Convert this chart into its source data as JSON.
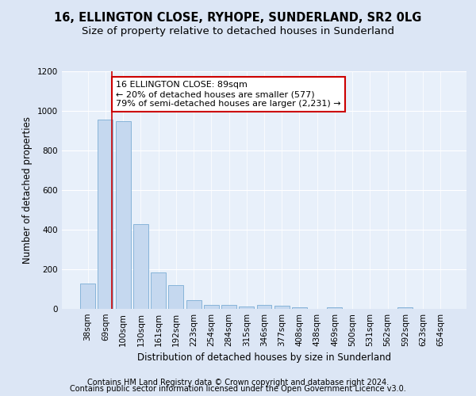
{
  "title1": "16, ELLINGTON CLOSE, RYHOPE, SUNDERLAND, SR2 0LG",
  "title2": "Size of property relative to detached houses in Sunderland",
  "xlabel": "Distribution of detached houses by size in Sunderland",
  "ylabel": "Number of detached properties",
  "bar_labels": [
    "38sqm",
    "69sqm",
    "100sqm",
    "130sqm",
    "161sqm",
    "192sqm",
    "223sqm",
    "254sqm",
    "284sqm",
    "315sqm",
    "346sqm",
    "377sqm",
    "408sqm",
    "438sqm",
    "469sqm",
    "500sqm",
    "531sqm",
    "562sqm",
    "592sqm",
    "623sqm",
    "654sqm"
  ],
  "bar_values": [
    127,
    955,
    947,
    430,
    185,
    120,
    45,
    22,
    20,
    14,
    20,
    15,
    10,
    0,
    10,
    0,
    0,
    0,
    10,
    0,
    0
  ],
  "bar_color": "#c5d8ef",
  "bar_edge_color": "#7aadd4",
  "ylim": [
    0,
    1200
  ],
  "yticks": [
    0,
    200,
    400,
    600,
    800,
    1000,
    1200
  ],
  "property_bin_index": 1,
  "annotation_line1": "16 ELLINGTON CLOSE: 89sqm",
  "annotation_line2": "← 20% of detached houses are smaller (577)",
  "annotation_line3": "79% of semi-detached houses are larger (2,231) →",
  "annotation_box_color": "#ffffff",
  "annotation_box_edge_color": "#cc0000",
  "red_line_x": 1,
  "footer1": "Contains HM Land Registry data © Crown copyright and database right 2024.",
  "footer2": "Contains public sector information licensed under the Open Government Licence v3.0.",
  "background_color": "#dce6f5",
  "plot_background_color": "#e8f0fa",
  "title_fontsize": 10.5,
  "subtitle_fontsize": 9.5,
  "axis_label_fontsize": 8.5,
  "tick_fontsize": 7.5,
  "annotation_fontsize": 8,
  "footer_fontsize": 7
}
